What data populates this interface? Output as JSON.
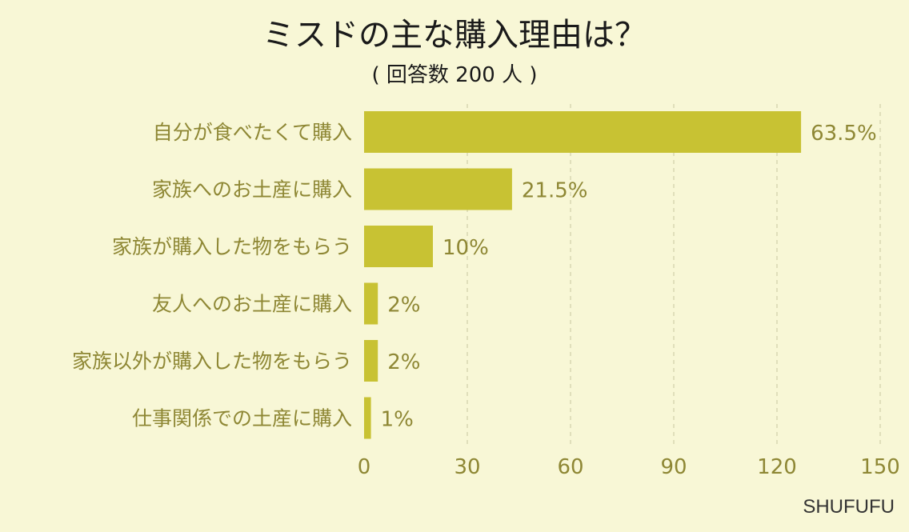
{
  "chart_data": {
    "type": "bar",
    "orientation": "horizontal",
    "title": "ミスドの主な購入理由は？",
    "subtitle": "( 回答数 200 人 )",
    "categories": [
      "自分が食べたくて購入",
      "家族へのお土産に購入",
      "家族が購入した物をもらう",
      "友人へのお土産に購入",
      "家族以外が購入した物をもらう",
      "仕事関係での土産に購入"
    ],
    "values": [
      127,
      43,
      20,
      4,
      4,
      2
    ],
    "value_labels": [
      "63.5%",
      "21.5%",
      "10%",
      "2%",
      "2%",
      "1%"
    ],
    "xlim": [
      0,
      150
    ],
    "xticks": [
      0,
      30,
      60,
      90,
      120,
      150
    ],
    "grid": "vertical-dashed",
    "colors": {
      "bar": "#c8c233",
      "background": "#f8f7d6",
      "label": "#8e8734"
    }
  },
  "credit": "SHUFUFU"
}
